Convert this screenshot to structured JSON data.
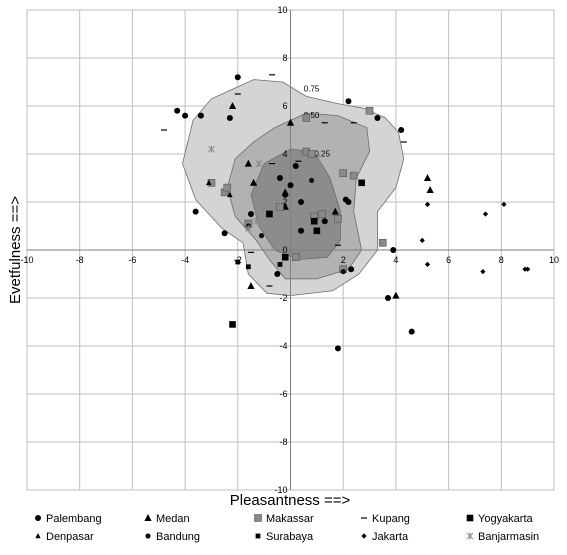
{
  "chart_data": {
    "type": "scatter",
    "title": "",
    "xlabel": "Pleasantness ==>",
    "ylabel": "Evetfulness ==>",
    "xlim": [
      -10,
      10
    ],
    "ylim": [
      -10,
      10
    ],
    "xticks": [
      -10,
      -8,
      -6,
      -4,
      -2,
      0,
      2,
      4,
      6,
      8,
      10
    ],
    "yticks": [
      -10,
      -8,
      -6,
      -4,
      -2,
      0,
      2,
      4,
      6,
      8,
      10
    ],
    "x_tick_labels": [
      "-10",
      "-8",
      "-6",
      "-4",
      "-2",
      "0",
      "2",
      "4",
      "6",
      "8",
      "10"
    ],
    "y_tick_labels": [
      "-10",
      "-8",
      "-6",
      "-4",
      "-2",
      "0",
      "2",
      "4",
      "6",
      "8",
      "10"
    ],
    "grid": true,
    "legend_position": "bottom",
    "contours": [
      {
        "label": "0.75",
        "fill": "#d4d4d4",
        "label_at": [
          0.8,
          6.6
        ],
        "points": [
          [
            -2.4,
            6.6
          ],
          [
            -1.4,
            7.1
          ],
          [
            -0.3,
            7.0
          ],
          [
            0.6,
            6.4
          ],
          [
            1.8,
            6.1
          ],
          [
            2.8,
            5.9
          ],
          [
            3.6,
            5.5
          ],
          [
            4.1,
            4.9
          ],
          [
            4.3,
            3.8
          ],
          [
            4.0,
            2.6
          ],
          [
            3.3,
            1.6
          ],
          [
            3.3,
            0.0
          ],
          [
            2.6,
            -1.0
          ],
          [
            1.6,
            -1.7
          ],
          [
            0.0,
            -1.9
          ],
          [
            -0.9,
            -1.8
          ],
          [
            -1.6,
            -1.0
          ],
          [
            -1.8,
            0.3
          ],
          [
            -2.6,
            0.9
          ],
          [
            -3.6,
            2.1
          ],
          [
            -4.1,
            3.6
          ],
          [
            -3.7,
            5.4
          ],
          [
            -3.0,
            6.3
          ]
        ]
      },
      {
        "label": "0.50",
        "fill": "#b2b2b2",
        "label_at": [
          0.8,
          5.5
        ],
        "points": [
          [
            -0.6,
            5.1
          ],
          [
            0.6,
            5.7
          ],
          [
            1.8,
            5.6
          ],
          [
            2.9,
            5.1
          ],
          [
            3.0,
            4.1
          ],
          [
            2.5,
            3.0
          ],
          [
            2.4,
            1.6
          ],
          [
            2.7,
            0.0
          ],
          [
            2.2,
            -0.8
          ],
          [
            1.0,
            -1.2
          ],
          [
            -0.2,
            -1.2
          ],
          [
            -0.8,
            -0.4
          ],
          [
            -1.3,
            0.4
          ],
          [
            -2.1,
            1.4
          ],
          [
            -2.4,
            2.6
          ],
          [
            -2.1,
            3.8
          ],
          [
            -1.4,
            4.5
          ]
        ]
      },
      {
        "label": "0.25",
        "fill": "#8c8c8c",
        "label_at": [
          1.2,
          3.9
        ],
        "points": [
          [
            -1.0,
            3.6
          ],
          [
            0.0,
            4.2
          ],
          [
            0.9,
            4.1
          ],
          [
            1.5,
            3.0
          ],
          [
            1.9,
            1.6
          ],
          [
            1.9,
            0.4
          ],
          [
            1.4,
            -0.3
          ],
          [
            0.3,
            -0.4
          ],
          [
            -0.6,
            0.0
          ],
          [
            -1.2,
            1.0
          ],
          [
            -1.5,
            2.3
          ]
        ]
      }
    ],
    "series": [
      {
        "name": "Palembang",
        "marker": "circle",
        "points": [
          [
            -2.0,
            7.2
          ],
          [
            -4.0,
            5.6
          ],
          [
            -3.4,
            5.6
          ],
          [
            -4.3,
            5.8
          ],
          [
            2.2,
            6.2
          ],
          [
            3.3,
            5.5
          ],
          [
            4.2,
            5.0
          ],
          [
            -2.3,
            5.5
          ],
          [
            -3.6,
            1.6
          ],
          [
            -2.5,
            0.7
          ],
          [
            -0.4,
            3.0
          ],
          [
            0.2,
            3.5
          ],
          [
            0.0,
            2.7
          ],
          [
            -0.2,
            2.3
          ],
          [
            0.4,
            2.0
          ],
          [
            1.3,
            1.2
          ],
          [
            2.1,
            2.1
          ],
          [
            2.2,
            2.0
          ],
          [
            3.9,
            0.0
          ],
          [
            3.7,
            -2.0
          ],
          [
            4.6,
            -3.4
          ],
          [
            1.8,
            -4.1
          ],
          [
            0.4,
            0.8
          ],
          [
            2.3,
            -0.8
          ],
          [
            -1.5,
            1.5
          ],
          [
            -0.5,
            -1.0
          ]
        ]
      },
      {
        "name": "Medan",
        "marker": "triangle",
        "points": [
          [
            -2.2,
            6.0
          ],
          [
            0.0,
            5.3
          ],
          [
            -1.6,
            3.6
          ],
          [
            -1.4,
            2.8
          ],
          [
            -0.2,
            1.8
          ],
          [
            4.0,
            -1.9
          ],
          [
            5.2,
            3.0
          ],
          [
            5.3,
            2.5
          ],
          [
            -0.2,
            2.4
          ],
          [
            -1.5,
            -1.5
          ],
          [
            1.7,
            1.6
          ]
        ]
      },
      {
        "name": "Makassar",
        "marker": "square-gray",
        "points": [
          [
            -3.0,
            2.8
          ],
          [
            -2.5,
            2.4
          ],
          [
            -2.4,
            2.6
          ],
          [
            0.6,
            5.5
          ],
          [
            0.6,
            4.1
          ],
          [
            0.8,
            4.0
          ],
          [
            2.0,
            3.2
          ],
          [
            2.4,
            3.1
          ],
          [
            1.2,
            1.5
          ],
          [
            1.8,
            1.3
          ],
          [
            0.9,
            1.4
          ],
          [
            3.5,
            0.3
          ],
          [
            2.0,
            -0.8
          ],
          [
            -0.4,
            1.8
          ],
          [
            0.2,
            -0.3
          ],
          [
            3.0,
            5.8
          ],
          [
            -1.6,
            1.1
          ]
        ]
      },
      {
        "name": "Kupang",
        "marker": "dash",
        "points": [
          [
            -4.8,
            5.0
          ],
          [
            -0.7,
            7.3
          ],
          [
            -2.0,
            6.5
          ],
          [
            1.3,
            5.3
          ],
          [
            2.4,
            5.3
          ],
          [
            -0.7,
            3.6
          ],
          [
            0.3,
            3.7
          ],
          [
            1.8,
            0.2
          ],
          [
            -1.5,
            -0.1
          ],
          [
            -0.8,
            -1.5
          ],
          [
            4.3,
            4.5
          ]
        ]
      },
      {
        "name": "Yogyakarta",
        "marker": "square-black",
        "points": [
          [
            -2.2,
            -3.1
          ],
          [
            2.7,
            2.8
          ],
          [
            1.0,
            0.8
          ],
          [
            0.9,
            1.2
          ],
          [
            -0.2,
            -0.3
          ],
          [
            -0.8,
            1.5
          ]
        ]
      },
      {
        "name": "Denpasar",
        "marker": "triangle-small",
        "points": [
          [
            -3.1,
            2.8
          ],
          [
            -2.3,
            2.3
          ]
        ]
      },
      {
        "name": "Bandung",
        "marker": "circle-small",
        "points": [
          [
            0.8,
            2.9
          ],
          [
            -1.6,
            1.0
          ],
          [
            -1.1,
            0.6
          ],
          [
            2.0,
            -0.9
          ]
        ]
      },
      {
        "name": "Surabaya",
        "marker": "square-small",
        "points": [
          [
            -2.0,
            -0.5
          ],
          [
            -1.6,
            -0.7
          ],
          [
            -0.4,
            -0.6
          ]
        ]
      },
      {
        "name": "Jakarta",
        "marker": "diamond",
        "points": [
          [
            5.2,
            1.9
          ],
          [
            7.4,
            1.5
          ],
          [
            8.1,
            1.9
          ],
          [
            5.0,
            0.4
          ],
          [
            5.2,
            -0.6
          ],
          [
            7.3,
            -0.9
          ],
          [
            8.9,
            -0.8
          ],
          [
            9.0,
            -0.8
          ]
        ]
      },
      {
        "name": "Banjarmasin",
        "marker": "asterisk",
        "points": [
          [
            -3.0,
            4.2
          ],
          [
            -1.2,
            3.6
          ],
          [
            1.2,
            2.4
          ],
          [
            0.7,
            1.8
          ],
          [
            -1.3,
            1.2
          ],
          [
            -1.6,
            0.9
          ]
        ]
      }
    ]
  }
}
